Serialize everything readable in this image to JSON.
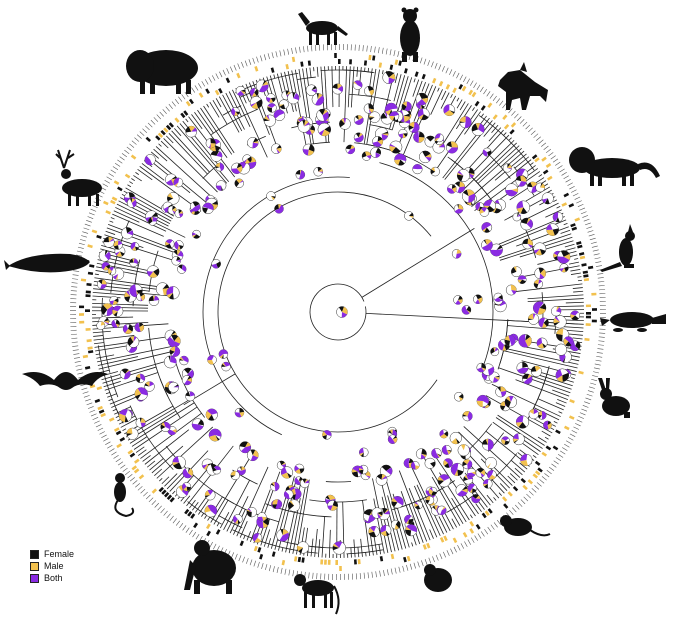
{
  "legend": {
    "items": [
      {
        "label": "Female",
        "color": "#111111"
      },
      {
        "label": "Male",
        "color": "#f2c14e"
      },
      {
        "label": "Both",
        "color": "#8a2be2"
      }
    ]
  },
  "colors": {
    "branch": "#222222",
    "silhouette": "#111111",
    "tip_label": "#555555",
    "node_white": "#ffffff"
  },
  "silhouettes": [
    "horse-icon",
    "bear-icon",
    "wolf-icon",
    "lion-icon",
    "kangaroo-icon",
    "platypus-icon",
    "rabbit-icon",
    "rat-icon",
    "hamster-icon",
    "monkey-icon",
    "gorilla-icon",
    "lemur-icon",
    "bat-icon",
    "whale-icon",
    "deer-icon",
    "bison-icon"
  ]
}
